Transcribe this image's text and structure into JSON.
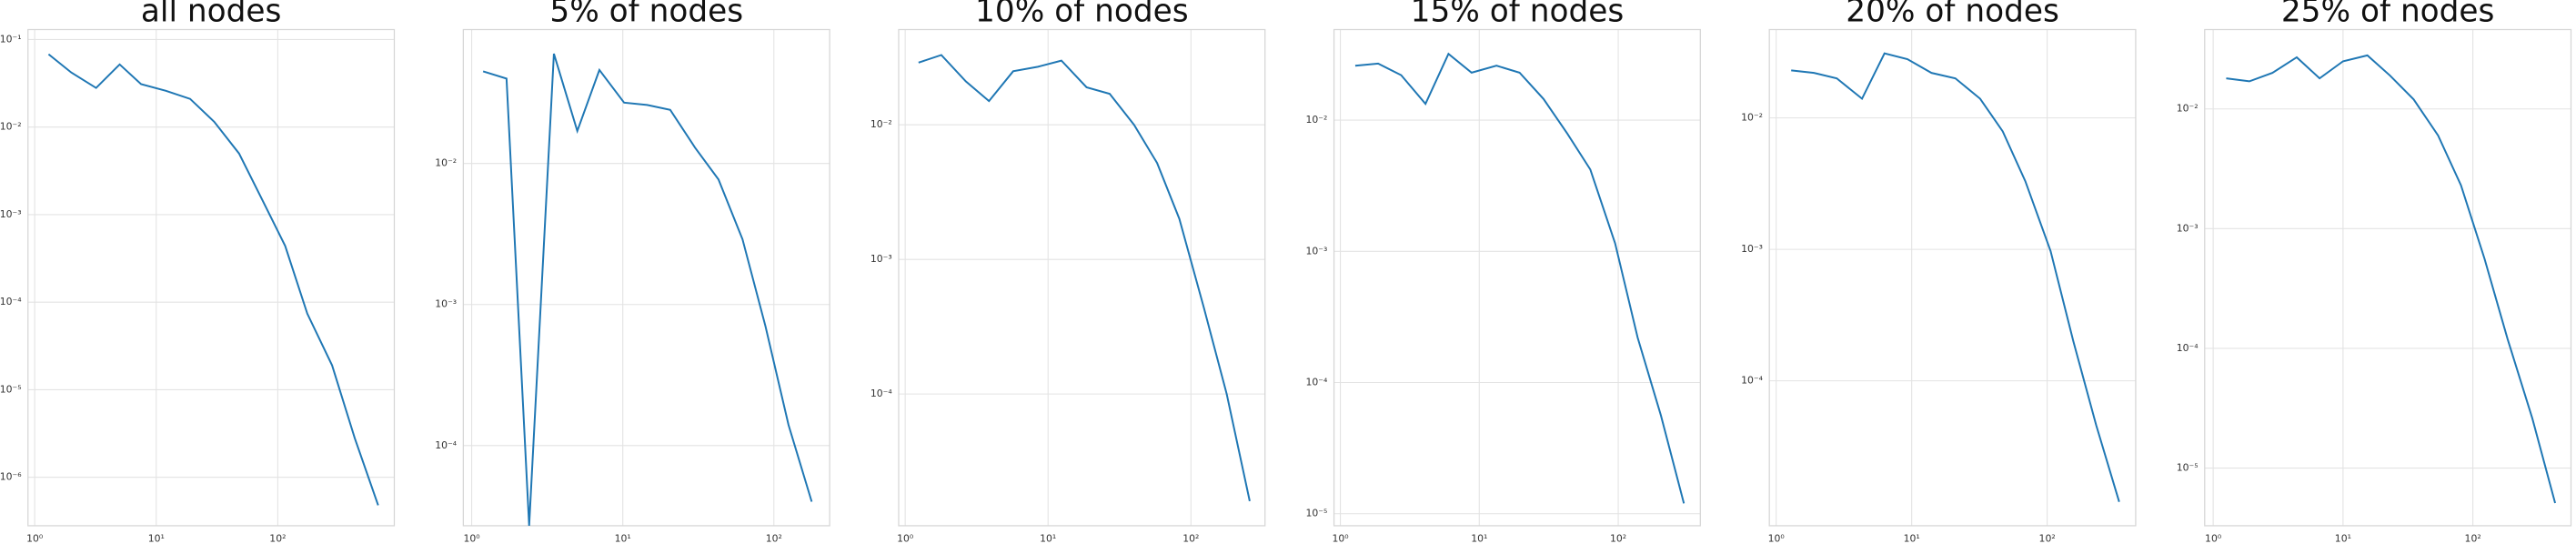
{
  "chart_data": [
    {
      "type": "line",
      "title": "all nodes",
      "xscale": "log",
      "yscale": "log",
      "grid": true,
      "color": "#1f77b4",
      "x": [
        1.3,
        2,
        3.2,
        5,
        7.5,
        12,
        19,
        30,
        48,
        76,
        115,
        175,
        280,
        430,
        670
      ],
      "values": [
        0.068,
        0.042,
        0.028,
        0.052,
        0.031,
        0.026,
        0.021,
        0.0115,
        0.005,
        0.0014,
        0.00044,
        7.4e-05,
        1.9e-05,
        2.8e-06,
        4.8e-07
      ],
      "xlim": [
        0.88,
        910
      ],
      "ylim": [
        2.8e-07,
        0.13
      ],
      "xticks": [
        {
          "value": 1,
          "label": "10⁰"
        },
        {
          "value": 10,
          "label": "10¹"
        },
        {
          "value": 100,
          "label": "10²"
        }
      ],
      "yticks": [
        {
          "value": 0.1,
          "label": "10⁻¹"
        },
        {
          "value": 0.01,
          "label": "10⁻²"
        },
        {
          "value": 0.001,
          "label": "10⁻³"
        },
        {
          "value": 0.0001,
          "label": "10⁻⁴"
        },
        {
          "value": 1e-05,
          "label": "10⁻⁵"
        },
        {
          "value": 1e-06,
          "label": "10⁻⁶"
        }
      ]
    },
    {
      "type": "line",
      "title": "5% of nodes",
      "xscale": "log",
      "yscale": "log",
      "grid": true,
      "color": "#1f77b4",
      "x": [
        1.19,
        1.7,
        2.4,
        3.5,
        5.0,
        7.0,
        10.2,
        14.5,
        20.6,
        30,
        43,
        62,
        88,
        125,
        178
      ],
      "values": [
        0.045,
        0.04,
        0,
        0.06,
        0.017,
        0.046,
        0.027,
        0.026,
        0.024,
        0.013,
        0.0077,
        0.0029,
        0.0007,
        0.00014,
        4e-05
      ],
      "xlim": [
        0.88,
        234
      ],
      "ylim": [
        2.7e-05,
        0.089
      ],
      "xticks": [
        {
          "value": 1,
          "label": "10⁰"
        },
        {
          "value": 10,
          "label": "10¹"
        },
        {
          "value": 100,
          "label": "10²"
        }
      ],
      "yticks": [
        {
          "value": 0.01,
          "label": "10⁻²"
        },
        {
          "value": 0.001,
          "label": "10⁻³"
        },
        {
          "value": 0.0001,
          "label": "10⁻⁴"
        }
      ]
    },
    {
      "type": "line",
      "title": "10% of nodes",
      "xscale": "log",
      "yscale": "log",
      "grid": true,
      "color": "#1f77b4",
      "x": [
        1.24,
        1.79,
        2.66,
        3.86,
        5.7,
        8.5,
        12.4,
        18.6,
        27,
        40,
        58,
        83,
        123,
        178,
        258
      ],
      "values": [
        0.029,
        0.033,
        0.021,
        0.015,
        0.025,
        0.027,
        0.03,
        0.019,
        0.017,
        0.01,
        0.0052,
        0.002,
        0.00044,
        0.0001,
        1.6e-05
      ],
      "xlim": [
        0.9,
        330
      ],
      "ylim": [
        1.05e-05,
        0.051
      ],
      "xticks": [
        {
          "value": 1,
          "label": "10⁰"
        },
        {
          "value": 10,
          "label": "10¹"
        },
        {
          "value": 100,
          "label": "10²"
        }
      ],
      "yticks": [
        {
          "value": 0.01,
          "label": "10⁻²"
        },
        {
          "value": 0.001,
          "label": "10⁻³"
        },
        {
          "value": 0.0001,
          "label": "10⁻⁴"
        }
      ]
    },
    {
      "type": "line",
      "title": "15% of nodes",
      "xscale": "log",
      "yscale": "log",
      "grid": true,
      "color": "#1f77b4",
      "x": [
        1.28,
        1.87,
        2.74,
        4.1,
        6.0,
        8.8,
        13.3,
        19.5,
        29,
        43,
        63,
        95,
        138,
        203,
        297
      ],
      "values": [
        0.026,
        0.027,
        0.022,
        0.0133,
        0.032,
        0.023,
        0.026,
        0.023,
        0.0145,
        0.0079,
        0.0042,
        0.00115,
        0.00022,
        5.6e-05,
        1.2e-05
      ],
      "xlim": [
        0.9,
        390
      ],
      "ylim": [
        8.1e-06,
        0.049
      ],
      "xticks": [
        {
          "value": 1,
          "label": "10⁰"
        },
        {
          "value": 10,
          "label": "10¹"
        },
        {
          "value": 100,
          "label": "10²"
        }
      ],
      "yticks": [
        {
          "value": 0.01,
          "label": "10⁻²"
        },
        {
          "value": 0.001,
          "label": "10⁻³"
        },
        {
          "value": 0.0001,
          "label": "10⁻⁴"
        },
        {
          "value": 1e-05,
          "label": "10⁻⁵"
        }
      ]
    },
    {
      "type": "line",
      "title": "20% of nodes",
      "xscale": "log",
      "yscale": "log",
      "grid": true,
      "color": "#1f77b4",
      "x": [
        1.29,
        1.9,
        2.8,
        4.3,
        6.3,
        9.3,
        14,
        21,
        32,
        47,
        69,
        106,
        156,
        230,
        340
      ],
      "values": [
        0.023,
        0.022,
        0.02,
        0.014,
        0.031,
        0.028,
        0.022,
        0.02,
        0.014,
        0.0079,
        0.0033,
        0.00097,
        0.0002,
        4.6e-05,
        1.2e-05
      ],
      "xlim": [
        0.89,
        450
      ],
      "ylim": [
        7.9e-06,
        0.047
      ],
      "xticks": [
        {
          "value": 1,
          "label": "10⁰"
        },
        {
          "value": 10,
          "label": "10¹"
        },
        {
          "value": 100,
          "label": "10²"
        }
      ],
      "yticks": [
        {
          "value": 0.01,
          "label": "10⁻²"
        },
        {
          "value": 0.001,
          "label": "10⁻³"
        },
        {
          "value": 0.0001,
          "label": "10⁻⁴"
        }
      ]
    },
    {
      "type": "line",
      "title": "25% of nodes",
      "xscale": "log",
      "yscale": "log",
      "grid": true,
      "color": "#1f77b4",
      "x": [
        1.26,
        1.9,
        2.86,
        4.4,
        6.6,
        10,
        15.4,
        23,
        35,
        54,
        81,
        123,
        185,
        287,
        430
      ],
      "values": [
        0.018,
        0.017,
        0.02,
        0.027,
        0.018,
        0.025,
        0.028,
        0.019,
        0.012,
        0.006,
        0.0023,
        0.00056,
        0.00012,
        2.6e-05,
        5.1e-06
      ],
      "xlim": [
        0.86,
        570
      ],
      "ylim": [
        3.3e-06,
        0.046
      ],
      "xticks": [
        {
          "value": 1,
          "label": "10⁰"
        },
        {
          "value": 10,
          "label": "10¹"
        },
        {
          "value": 100,
          "label": "10²"
        }
      ],
      "yticks": [
        {
          "value": 0.01,
          "label": "10⁻²"
        },
        {
          "value": 0.001,
          "label": "10⁻³"
        },
        {
          "value": 0.0001,
          "label": "10⁻⁴"
        },
        {
          "value": 1e-05,
          "label": "10⁻⁵"
        }
      ]
    }
  ]
}
